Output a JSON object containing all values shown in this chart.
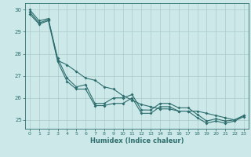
{
  "xlabel": "Humidex (Indice chaleur)",
  "x": [
    0,
    1,
    2,
    3,
    4,
    5,
    6,
    7,
    8,
    9,
    10,
    11,
    12,
    13,
    14,
    15,
    16,
    17,
    18,
    19,
    20,
    21,
    22,
    23
  ],
  "line_top": [
    30.0,
    29.5,
    29.6,
    27.7,
    27.5,
    27.2,
    26.9,
    26.8,
    26.5,
    26.4,
    26.1,
    25.9,
    25.7,
    25.6,
    25.5,
    25.5,
    25.4,
    25.4,
    25.4,
    25.3,
    25.2,
    25.1,
    25.0,
    25.2
  ],
  "line_mid": [
    29.9,
    29.4,
    29.55,
    27.8,
    26.9,
    26.5,
    26.6,
    25.75,
    25.75,
    26.0,
    26.0,
    26.15,
    25.45,
    25.45,
    25.75,
    25.75,
    25.55,
    25.55,
    25.25,
    24.95,
    25.05,
    24.95,
    25.0,
    25.2
  ],
  "line_bot": [
    29.8,
    29.35,
    29.5,
    27.65,
    26.75,
    26.4,
    26.4,
    25.65,
    25.65,
    25.75,
    25.75,
    26.0,
    25.3,
    25.3,
    25.6,
    25.6,
    25.4,
    25.4,
    25.1,
    24.85,
    24.95,
    24.85,
    24.95,
    25.15
  ],
  "line_color": "#2e6e6e",
  "bg_color": "#cce8e8",
  "grid_color": "#aacccc",
  "ylim": [
    24.6,
    30.3
  ],
  "yticks": [
    25,
    26,
    27,
    28,
    29,
    30
  ],
  "xticks": [
    0,
    1,
    2,
    3,
    4,
    5,
    6,
    7,
    8,
    9,
    10,
    11,
    12,
    13,
    14,
    15,
    16,
    17,
    18,
    19,
    20,
    21,
    22,
    23
  ]
}
